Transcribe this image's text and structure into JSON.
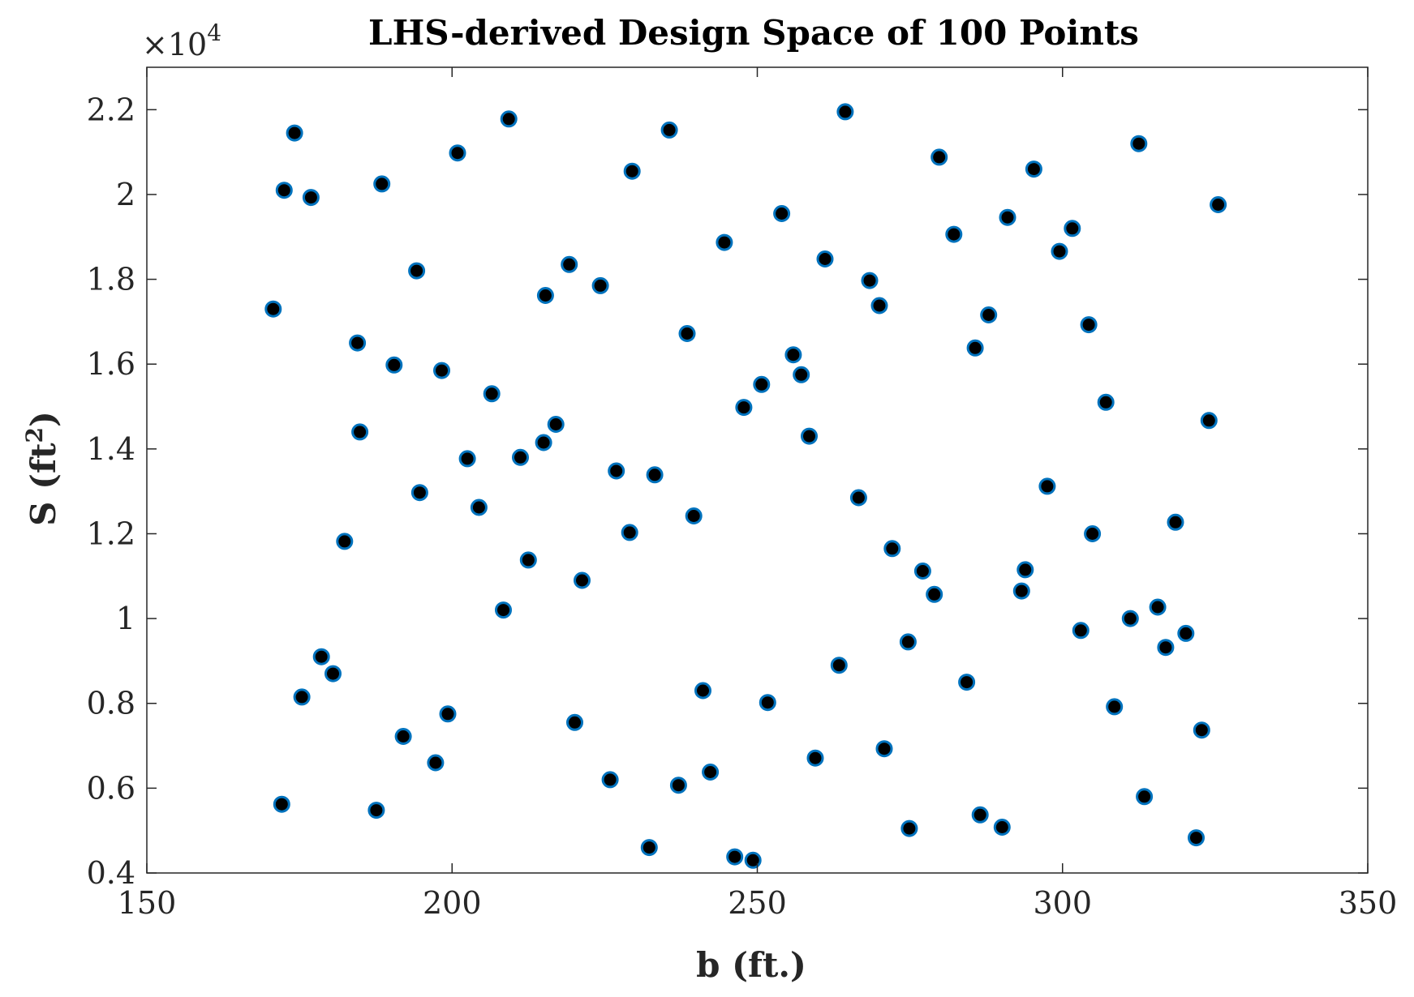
{
  "chart_data": {
    "type": "scatter",
    "title": "LHS-derived Design Space of 100 Points",
    "xlabel": "b (ft.)",
    "ylabel_base": "S (ft",
    "ylabel_sup": "2",
    "ylabel_close": ")",
    "y_multiplier_base": "×10",
    "y_multiplier_exp": "4",
    "xlim": [
      150,
      350
    ],
    "ylim": [
      4000,
      23000
    ],
    "x_ticks": [
      150,
      200,
      250,
      300,
      350
    ],
    "y_ticks": [
      4000,
      6000,
      8000,
      10000,
      12000,
      14000,
      16000,
      18000,
      20000,
      22000
    ],
    "x_tick_labels": [
      "150",
      "200",
      "250",
      "300",
      "350"
    ],
    "y_tick_labels": [
      "0.4",
      "0.6",
      "0.8",
      "1",
      "1.2",
      "1.4",
      "1.6",
      "1.8",
      "2",
      "2.2"
    ],
    "grid": false,
    "marker_fill": "#000000",
    "marker_edge": "#0072BD",
    "points": [
      [
        170.7,
        17300
      ],
      [
        172.1,
        5620
      ],
      [
        172.5,
        20100
      ],
      [
        174.2,
        21450
      ],
      [
        175.4,
        8150
      ],
      [
        176.9,
        19930
      ],
      [
        178.6,
        9100
      ],
      [
        180.5,
        8700
      ],
      [
        182.4,
        11820
      ],
      [
        184.5,
        16500
      ],
      [
        184.9,
        14400
      ],
      [
        187.6,
        5480
      ],
      [
        188.5,
        20250
      ],
      [
        190.5,
        15980
      ],
      [
        192.0,
        7220
      ],
      [
        194.2,
        18200
      ],
      [
        194.7,
        12970
      ],
      [
        197.3,
        6600
      ],
      [
        198.3,
        15850
      ],
      [
        199.3,
        7750
      ],
      [
        200.9,
        20980
      ],
      [
        202.5,
        13770
      ],
      [
        204.4,
        12620
      ],
      [
        206.5,
        15300
      ],
      [
        208.4,
        10200
      ],
      [
        209.3,
        21780
      ],
      [
        211.2,
        13800
      ],
      [
        212.5,
        11380
      ],
      [
        215.0,
        14150
      ],
      [
        215.3,
        17620
      ],
      [
        217.0,
        14580
      ],
      [
        219.2,
        18350
      ],
      [
        220.1,
        7550
      ],
      [
        221.3,
        10900
      ],
      [
        224.3,
        17850
      ],
      [
        225.9,
        6200
      ],
      [
        226.9,
        13480
      ],
      [
        229.1,
        12030
      ],
      [
        229.5,
        20550
      ],
      [
        232.3,
        4600
      ],
      [
        233.2,
        13390
      ],
      [
        235.6,
        21520
      ],
      [
        237.1,
        6070
      ],
      [
        238.5,
        16720
      ],
      [
        239.6,
        12420
      ],
      [
        241.1,
        8300
      ],
      [
        242.3,
        6380
      ],
      [
        244.6,
        18870
      ],
      [
        246.3,
        4380
      ],
      [
        247.8,
        14980
      ],
      [
        249.3,
        4300
      ],
      [
        250.7,
        15520
      ],
      [
        251.7,
        8020
      ],
      [
        254.0,
        19550
      ],
      [
        255.9,
        16220
      ],
      [
        257.2,
        15750
      ],
      [
        258.5,
        14300
      ],
      [
        259.5,
        6710
      ],
      [
        261.1,
        18480
      ],
      [
        263.4,
        8900
      ],
      [
        264.4,
        21950
      ],
      [
        266.6,
        12850
      ],
      [
        268.4,
        17970
      ],
      [
        270.0,
        17380
      ],
      [
        270.8,
        6930
      ],
      [
        272.1,
        11650
      ],
      [
        274.7,
        9450
      ],
      [
        274.9,
        5050
      ],
      [
        277.1,
        11120
      ],
      [
        279.0,
        10570
      ],
      [
        279.8,
        20880
      ],
      [
        282.2,
        19060
      ],
      [
        284.3,
        8500
      ],
      [
        285.7,
        16380
      ],
      [
        286.5,
        5370
      ],
      [
        287.9,
        17160
      ],
      [
        290.1,
        5080
      ],
      [
        291.0,
        19460
      ],
      [
        293.3,
        10650
      ],
      [
        293.9,
        11150
      ],
      [
        295.3,
        20600
      ],
      [
        297.5,
        13120
      ],
      [
        299.5,
        18660
      ],
      [
        301.6,
        19200
      ],
      [
        303.0,
        9720
      ],
      [
        304.3,
        16930
      ],
      [
        304.9,
        12000
      ],
      [
        307.1,
        15100
      ],
      [
        308.5,
        7920
      ],
      [
        311.1,
        10000
      ],
      [
        312.5,
        21200
      ],
      [
        313.4,
        5800
      ],
      [
        315.6,
        10270
      ],
      [
        316.9,
        9320
      ],
      [
        318.5,
        12270
      ],
      [
        320.2,
        9650
      ],
      [
        321.9,
        4830
      ],
      [
        322.8,
        7370
      ],
      [
        324.0,
        14670
      ],
      [
        325.5,
        19760
      ]
    ]
  }
}
